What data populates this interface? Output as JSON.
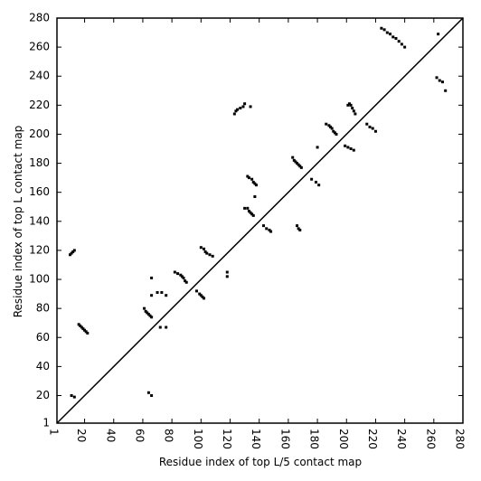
{
  "chart_data": {
    "type": "scatter",
    "xlabel": "Residue index of top L/5 contact map",
    "ylabel": "Residue index of top L contact map",
    "color": "#000000",
    "x": [
      224,
      226,
      228,
      230,
      232,
      234,
      236,
      238,
      240,
      263,
      262,
      264,
      266,
      268,
      123,
      124,
      125,
      127,
      129,
      130,
      134,
      201,
      202,
      203,
      204,
      205,
      206,
      186,
      188,
      189,
      190,
      191,
      192,
      193,
      214,
      216,
      218,
      220,
      199,
      201,
      203,
      205,
      180,
      163,
      164,
      165,
      166,
      167,
      168,
      169,
      176,
      179,
      181,
      132,
      133,
      135,
      136,
      137,
      138,
      137,
      130,
      132,
      133,
      134,
      135,
      136,
      143,
      145,
      147,
      148,
      166,
      167,
      168,
      100,
      102,
      103,
      104,
      106,
      108,
      118,
      118,
      82,
      84,
      86,
      87,
      88,
      89,
      90,
      97,
      99,
      100,
      101,
      102,
      66,
      70,
      73,
      76,
      66,
      61,
      62,
      63,
      64,
      65,
      66,
      72,
      76,
      16,
      17,
      18,
      19,
      20,
      21,
      22,
      10,
      11,
      12,
      13,
      11,
      13,
      64,
      66
    ],
    "values": [
      273,
      272,
      270,
      269,
      267,
      266,
      264,
      262,
      260,
      269,
      239,
      237,
      236,
      230,
      214,
      216,
      217,
      218,
      219,
      221,
      219,
      220,
      221,
      220,
      218,
      216,
      214,
      207,
      206,
      205,
      204,
      202,
      201,
      200,
      207,
      205,
      204,
      202,
      192,
      191,
      190,
      189,
      191,
      184,
      182,
      181,
      180,
      179,
      178,
      177,
      169,
      167,
      165,
      171,
      170,
      169,
      167,
      166,
      165,
      157,
      149,
      149,
      147,
      146,
      145,
      144,
      137,
      135,
      134,
      133,
      137,
      135,
      134,
      122,
      121,
      119,
      118,
      117,
      116,
      105,
      102,
      105,
      104,
      103,
      102,
      101,
      99,
      98,
      92,
      90,
      89,
      88,
      87,
      89,
      91,
      91,
      89,
      101,
      80,
      78,
      77,
      76,
      75,
      74,
      67,
      67,
      69,
      68,
      67,
      66,
      65,
      64,
      63,
      117,
      118,
      119,
      120,
      20,
      19,
      22,
      20
    ],
    "xlim": [
      1,
      280
    ],
    "ylim": [
      1,
      280
    ],
    "xticks": [
      1,
      20,
      40,
      60,
      80,
      100,
      120,
      140,
      160,
      180,
      200,
      220,
      240,
      260,
      280
    ],
    "yticks": [
      1,
      20,
      40,
      60,
      80,
      100,
      120,
      140,
      160,
      180,
      200,
      220,
      240,
      260,
      280
    ]
  }
}
